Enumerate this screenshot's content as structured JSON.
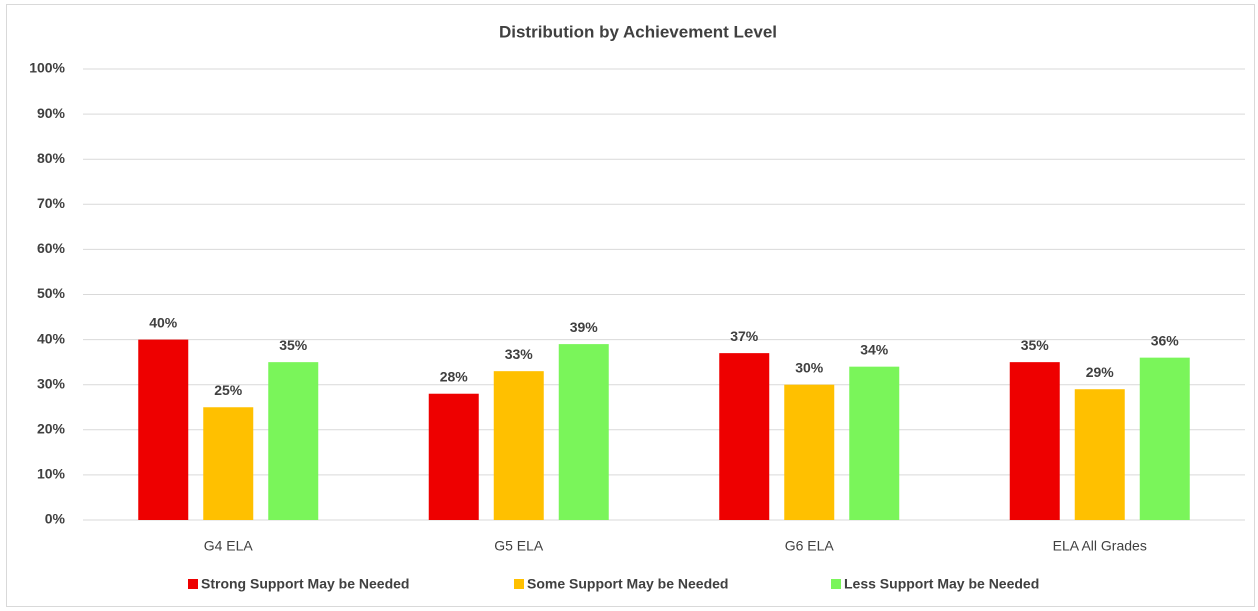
{
  "chart_data": {
    "type": "bar",
    "title": "Distribution by Achievement Level",
    "categories": [
      "G4 ELA",
      "G5 ELA",
      "G6 ELA",
      "ELA All Grades"
    ],
    "series": [
      {
        "name": "Strong Support May be Needed",
        "color": "#ee0000",
        "values": [
          40,
          28,
          37,
          35
        ],
        "value_labels": [
          "40%",
          "28%",
          "37%",
          "35%"
        ]
      },
      {
        "name": "Some Support May be Needed",
        "color": "#ffc000",
        "values": [
          25,
          33,
          30,
          29
        ],
        "value_labels": [
          "25%",
          "33%",
          "30%",
          "29%"
        ]
      },
      {
        "name": "Less Support May be Needed",
        "color": "#7af55a",
        "values": [
          35,
          39,
          34,
          36
        ],
        "value_labels": [
          "35%",
          "39%",
          "34%",
          "36%"
        ]
      }
    ],
    "ylim": [
      0,
      100
    ],
    "yticks": [
      {
        "value": 0,
        "label": "0%"
      },
      {
        "value": 10,
        "label": "10%"
      },
      {
        "value": 20,
        "label": "20%"
      },
      {
        "value": 30,
        "label": "30%"
      },
      {
        "value": 40,
        "label": "40%"
      },
      {
        "value": 50,
        "label": "50%"
      },
      {
        "value": 60,
        "label": "60%"
      },
      {
        "value": 70,
        "label": "70%"
      },
      {
        "value": 80,
        "label": "80%"
      },
      {
        "value": 90,
        "label": "90%"
      },
      {
        "value": 100,
        "label": "100%"
      }
    ],
    "grid": true,
    "legend": "bottom"
  }
}
